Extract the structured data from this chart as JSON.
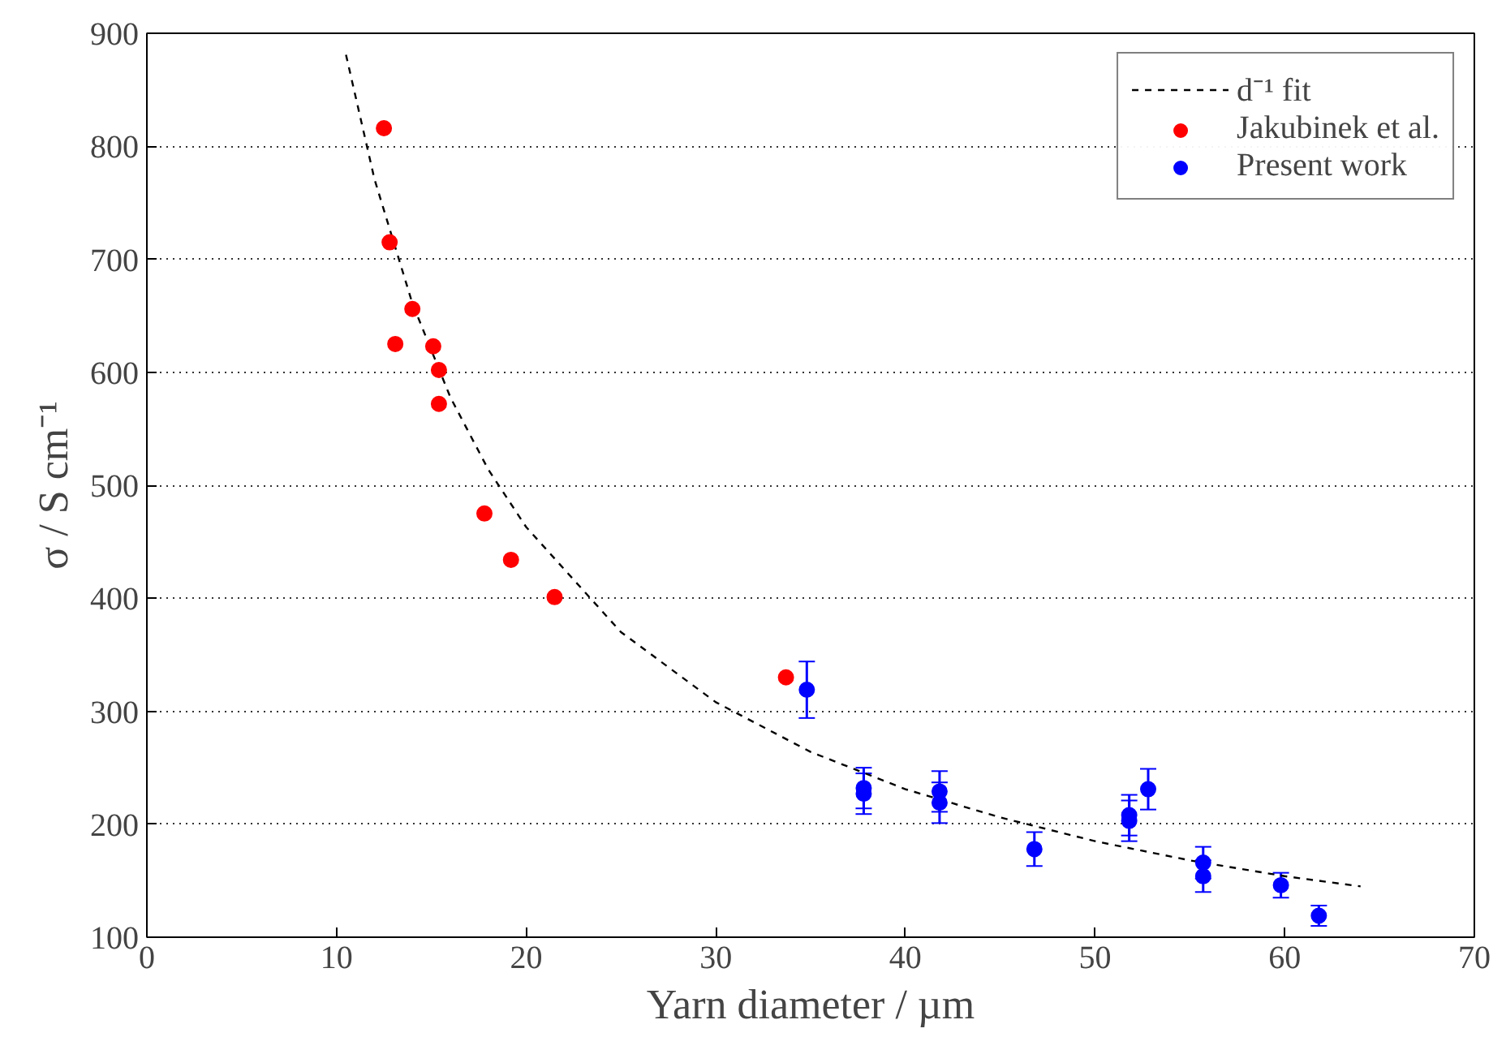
{
  "chart_data": {
    "type": "scatter",
    "xlabel": "Yarn diameter / µm",
    "ylabel": "σ / S cm⁻¹",
    "xlim": [
      0,
      70
    ],
    "xticks": [
      0,
      10,
      20,
      30,
      40,
      50,
      60,
      70
    ],
    "ylim": [
      100,
      900
    ],
    "yticks": [
      100,
      200,
      300,
      400,
      500,
      600,
      700,
      800,
      900
    ],
    "grid": "y",
    "legend": "top right",
    "series": [
      {
        "name": "d⁻¹ fit",
        "type": "line",
        "line_style": "dashed",
        "marker": "none",
        "color": "#000000",
        "x": [
          10.5,
          12,
          14,
          16,
          18,
          20,
          25,
          30,
          35,
          40,
          45,
          50,
          55,
          60,
          64
        ],
        "values": [
          881,
          771,
          661,
          578,
          514,
          463,
          370,
          308,
          264,
          231,
          206,
          185,
          168,
          154,
          145
        ]
      },
      {
        "name": "Jakubinek et al.",
        "marker": "circle",
        "color": "#ff0000",
        "x": [
          12.5,
          12.8,
          14.0,
          13.1,
          15.1,
          15.4,
          15.4,
          17.8,
          19.2,
          21.5,
          33.7
        ],
        "values": [
          816,
          715,
          656,
          625,
          623,
          602,
          572,
          475,
          434,
          401,
          330
        ]
      },
      {
        "name": "Present work",
        "marker": "circle",
        "color": "#0000ff",
        "x": [
          34.8,
          37.8,
          37.8,
          41.8,
          41.8,
          46.8,
          51.8,
          51.8,
          52.8,
          55.7,
          55.7,
          59.8,
          61.8
        ],
        "values": [
          319,
          232,
          227,
          229,
          219,
          178,
          208,
          203,
          231,
          166,
          154,
          146,
          119
        ],
        "errors": [
          25,
          18,
          18,
          18,
          18,
          15,
          18,
          18,
          18,
          14,
          14,
          11,
          9
        ]
      }
    ]
  }
}
